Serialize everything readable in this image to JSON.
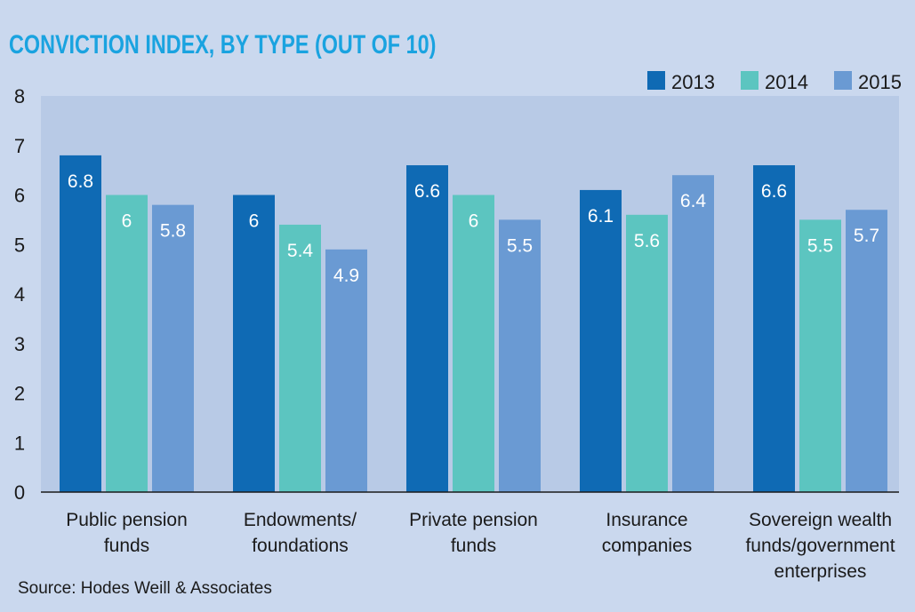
{
  "chart_data": {
    "type": "bar",
    "title": "CONVICTION INDEX, BY TYPE (OUT OF 10)",
    "categories": [
      [
        "Public pension",
        "funds"
      ],
      [
        "Endowments/",
        "foundations"
      ],
      [
        "Private pension",
        "funds"
      ],
      [
        "Insurance",
        "companies"
      ],
      [
        "Sovereign wealth",
        "funds/government",
        "enterprises"
      ]
    ],
    "series": [
      {
        "name": "2013",
        "color": "#0f6ab4",
        "values": [
          6.8,
          6,
          6.6,
          6.1,
          6.6
        ]
      },
      {
        "name": "2014",
        "color": "#5cc5c0",
        "values": [
          6,
          5.4,
          6,
          5.6,
          5.5
        ]
      },
      {
        "name": "2015",
        "color": "#6a9ad3",
        "values": [
          5.8,
          4.9,
          5.5,
          6.4,
          5.7
        ]
      }
    ],
    "ylim": [
      0,
      8
    ],
    "yticks": [
      "0",
      "1",
      "2",
      "3",
      "4",
      "5",
      "6",
      "7",
      "8"
    ],
    "xlabel": "",
    "ylabel": "",
    "legend": "top-right",
    "grid": false,
    "source": "Source: Hodes Weill & Associates"
  }
}
